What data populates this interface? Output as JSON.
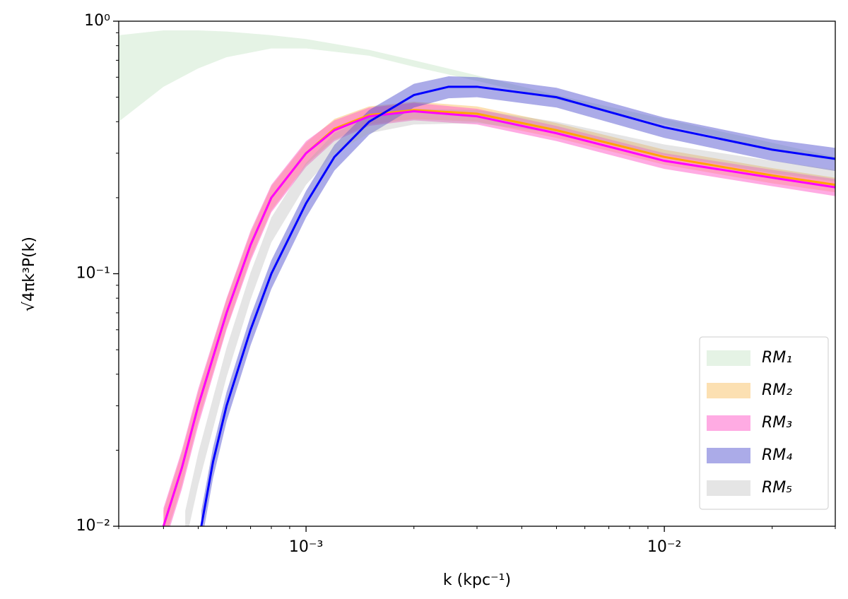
{
  "chart_data": {
    "type": "band",
    "xlabel": "k (kpc⁻¹)",
    "ylabel": "√4πk³P(k)",
    "log_x": true,
    "log_y": true,
    "minor_ticks": true,
    "xlim": [
      0.0003,
      0.03
    ],
    "ylim": [
      0.01,
      1
    ],
    "xticks": [
      {
        "value": 0.001,
        "label": "10⁻³"
      },
      {
        "value": 0.01,
        "label": "10⁻²"
      }
    ],
    "yticks": [
      {
        "value": 0.01,
        "label": "10⁻²"
      },
      {
        "value": 0.1,
        "label": "10⁻¹"
      },
      {
        "value": 1,
        "label": "10⁰"
      }
    ],
    "legend": "lower right",
    "series": [
      {
        "name": "RM₁",
        "color": "#2ca02c",
        "opacity": 0.12,
        "x": [
          0.0003,
          0.0004,
          0.0005,
          0.0006,
          0.0008,
          0.001,
          0.0015,
          0.002,
          0.003,
          0.005,
          0.01,
          0.02,
          0.03
        ],
        "lower": [
          0.4,
          0.55,
          0.65,
          0.72,
          0.78,
          0.78,
          0.73,
          0.66,
          0.58,
          0.49,
          0.39,
          0.31,
          0.28
        ],
        "upper": [
          0.88,
          0.92,
          0.92,
          0.91,
          0.88,
          0.85,
          0.77,
          0.7,
          0.61,
          0.51,
          0.41,
          0.33,
          0.29
        ]
      },
      {
        "name": "RM₂",
        "color": "#f5a623",
        "opacity": 0.35,
        "line_color": "#ffa500",
        "x": [
          0.0004,
          0.00045,
          0.0005,
          0.0006,
          0.0007,
          0.0008,
          0.001,
          0.0012,
          0.0015,
          0.002,
          0.003,
          0.005,
          0.01,
          0.02,
          0.03
        ],
        "values": [
          0.01,
          0.017,
          0.03,
          0.07,
          0.13,
          0.2,
          0.3,
          0.375,
          0.425,
          0.445,
          0.43,
          0.37,
          0.29,
          0.245,
          0.225
        ],
        "lower": [
          0.0085,
          0.0145,
          0.026,
          0.061,
          0.115,
          0.178,
          0.27,
          0.34,
          0.39,
          0.41,
          0.4,
          0.345,
          0.27,
          0.228,
          0.21
        ],
        "upper": [
          0.0115,
          0.0195,
          0.034,
          0.079,
          0.145,
          0.222,
          0.33,
          0.41,
          0.46,
          0.48,
          0.46,
          0.395,
          0.31,
          0.262,
          0.24
        ]
      },
      {
        "name": "RM₃",
        "color": "#ff66cc",
        "opacity": 0.55,
        "line_color": "#ff00ff",
        "x": [
          0.0004,
          0.00045,
          0.0005,
          0.0006,
          0.0007,
          0.0008,
          0.001,
          0.0012,
          0.0015,
          0.002,
          0.003,
          0.005,
          0.01,
          0.02,
          0.03
        ],
        "values": [
          0.01,
          0.017,
          0.03,
          0.07,
          0.13,
          0.2,
          0.3,
          0.37,
          0.42,
          0.44,
          0.42,
          0.36,
          0.28,
          0.24,
          0.22
        ],
        "lower": [
          0.0082,
          0.014,
          0.025,
          0.06,
          0.112,
          0.175,
          0.265,
          0.335,
          0.385,
          0.405,
          0.39,
          0.335,
          0.26,
          0.222,
          0.203
        ],
        "upper": [
          0.0118,
          0.02,
          0.035,
          0.08,
          0.148,
          0.225,
          0.335,
          0.405,
          0.455,
          0.475,
          0.45,
          0.385,
          0.3,
          0.258,
          0.237
        ]
      },
      {
        "name": "RM₄",
        "color": "#4444cc",
        "opacity": 0.45,
        "line_color": "#0000ff",
        "x": [
          0.00051,
          0.00055,
          0.0006,
          0.0007,
          0.0008,
          0.001,
          0.0012,
          0.0015,
          0.002,
          0.0025,
          0.003,
          0.005,
          0.01,
          0.02,
          0.03
        ],
        "values": [
          0.01,
          0.018,
          0.03,
          0.06,
          0.1,
          0.19,
          0.29,
          0.4,
          0.51,
          0.55,
          0.55,
          0.5,
          0.38,
          0.31,
          0.285
        ],
        "lower": [
          0.0085,
          0.0155,
          0.026,
          0.052,
          0.087,
          0.167,
          0.256,
          0.355,
          0.455,
          0.495,
          0.5,
          0.455,
          0.345,
          0.28,
          0.255
        ],
        "upper": [
          0.0115,
          0.0205,
          0.034,
          0.068,
          0.113,
          0.213,
          0.324,
          0.445,
          0.565,
          0.605,
          0.6,
          0.545,
          0.415,
          0.34,
          0.315
        ]
      },
      {
        "name": "RM₅",
        "color": "#aaaaaa",
        "opacity": 0.3,
        "x": [
          0.00046,
          0.0005,
          0.0006,
          0.0007,
          0.0008,
          0.001,
          0.0012,
          0.0015,
          0.002,
          0.003,
          0.005,
          0.01,
          0.02,
          0.03
        ],
        "lower": [
          0.0085,
          0.0145,
          0.039,
          0.079,
          0.133,
          0.225,
          0.3,
          0.36,
          0.39,
          0.395,
          0.36,
          0.295,
          0.25,
          0.232
        ],
        "upper": [
          0.0115,
          0.0195,
          0.051,
          0.101,
          0.167,
          0.275,
          0.36,
          0.42,
          0.45,
          0.445,
          0.4,
          0.325,
          0.28,
          0.258
        ]
      }
    ]
  }
}
